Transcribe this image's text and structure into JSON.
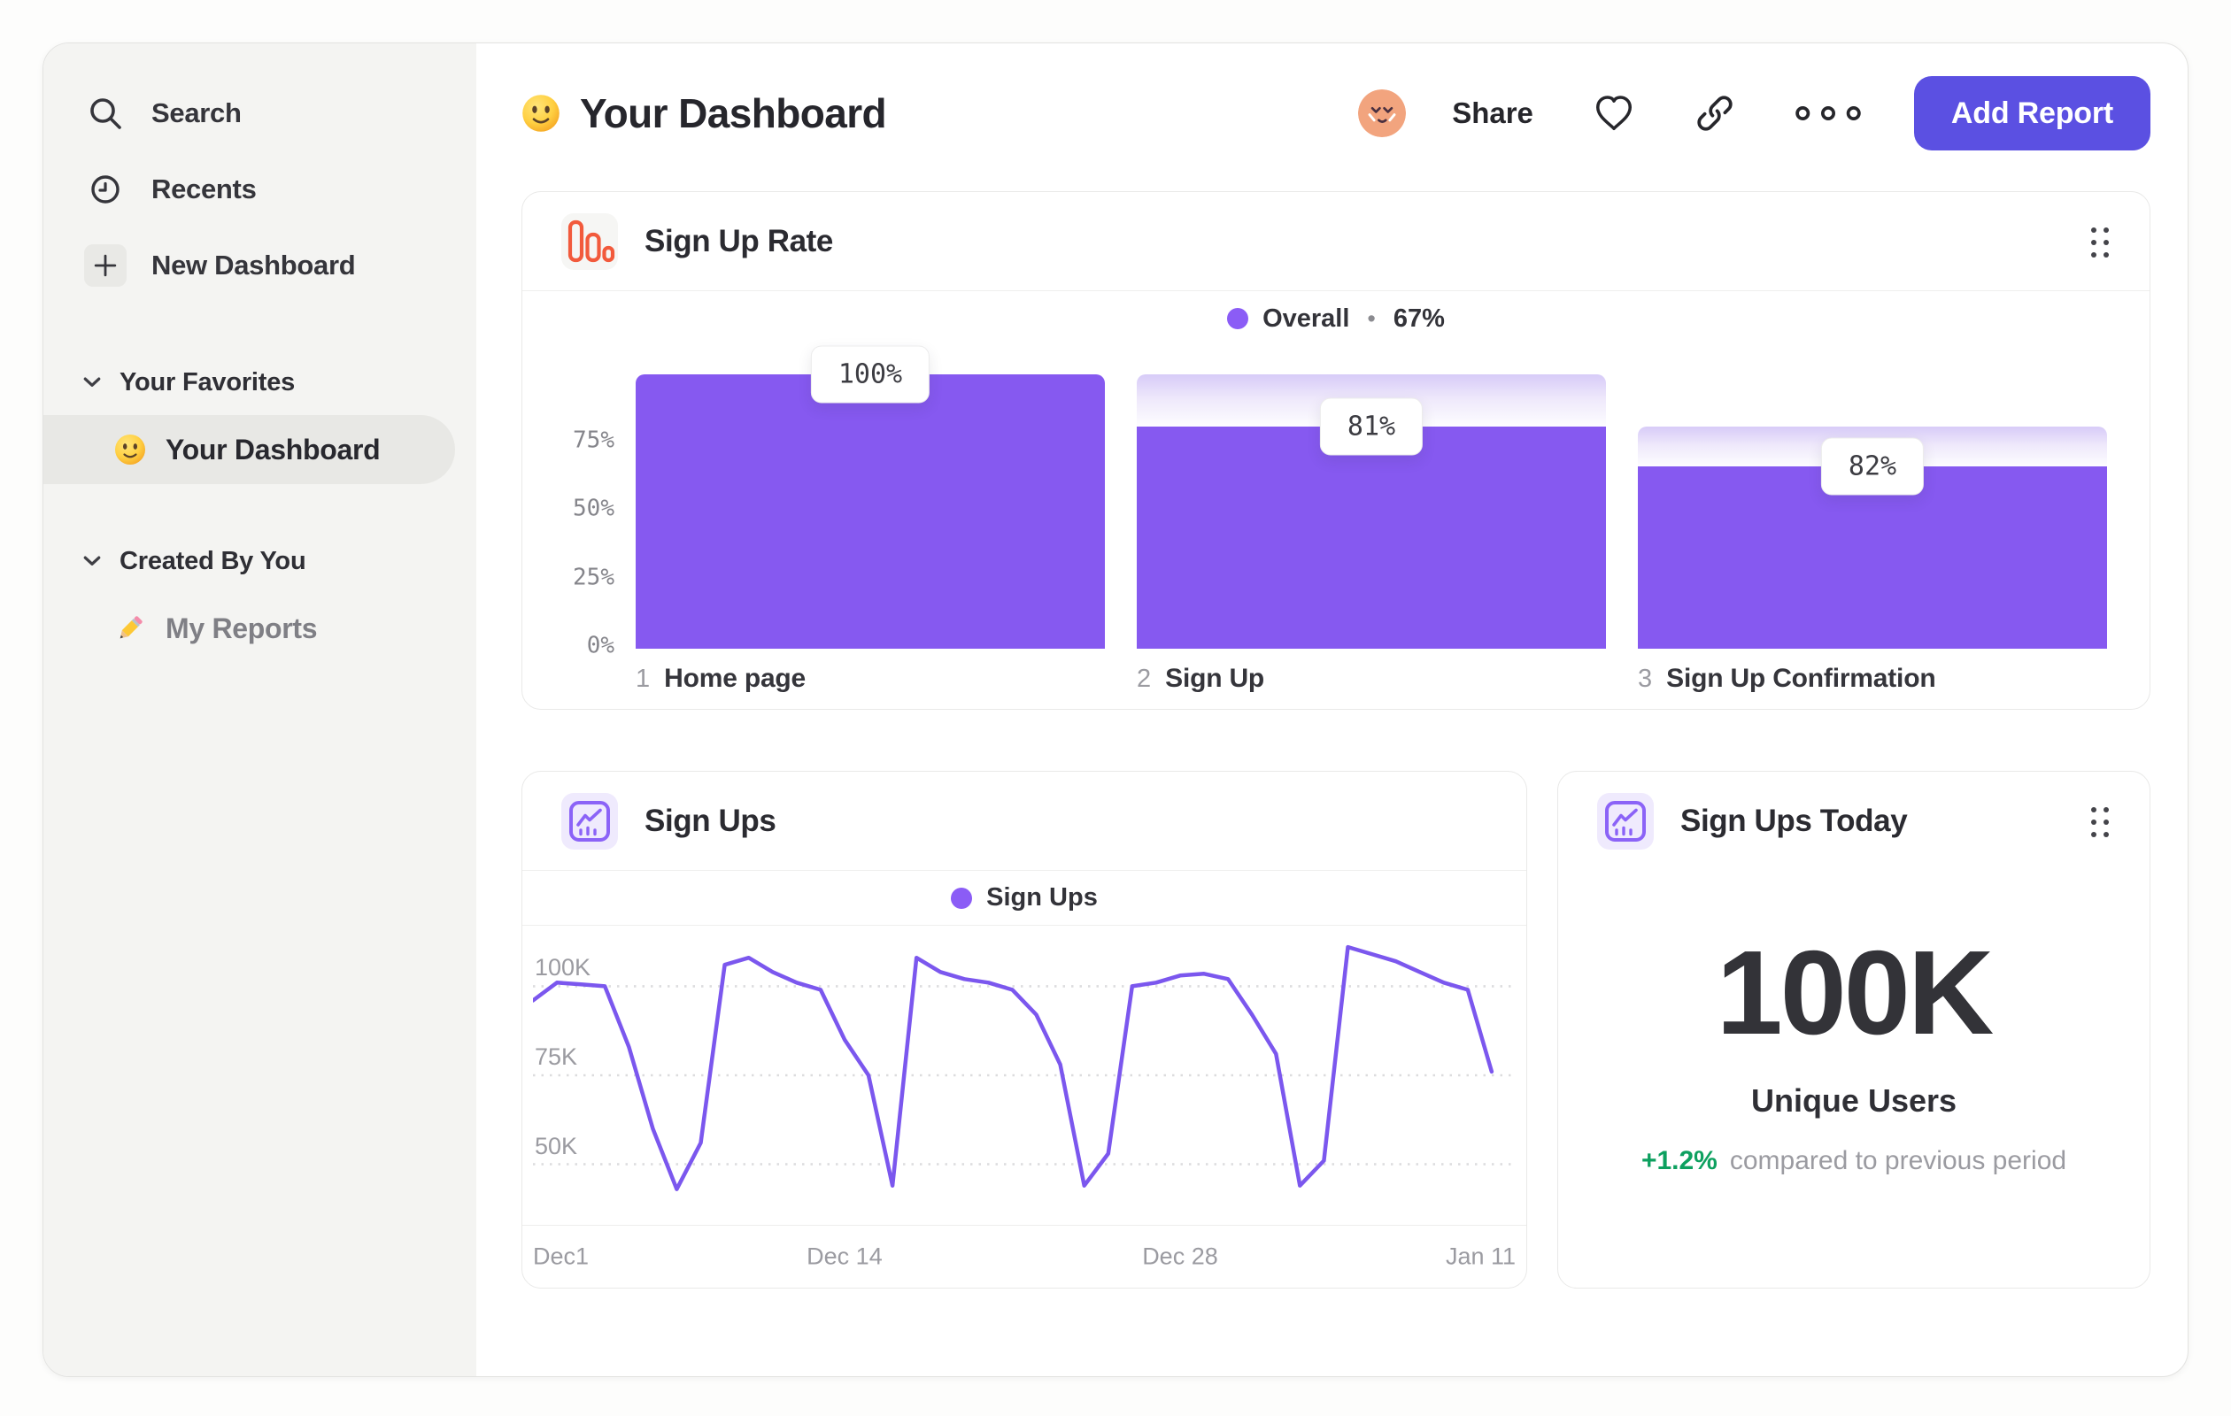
{
  "colors": {
    "accent_button": "#5b50e2",
    "bar_purple": "#8659f0",
    "legend_dot": "#8b5cf6",
    "line_purple": "#7b57ee",
    "icon_orange": "#f25a3c",
    "icon_violet": "#8b63f7",
    "delta_green": "#0da05f",
    "sidebar_bg": "#f4f4f2"
  },
  "sidebar": {
    "nav": [
      {
        "label": "Search",
        "icon": "search-icon"
      },
      {
        "label": "Recents",
        "icon": "clock-icon"
      },
      {
        "label": "New Dashboard",
        "icon": "plus-icon"
      }
    ],
    "sections": [
      {
        "label": "Your Favorites",
        "items": [
          {
            "label": "Your Dashboard",
            "icon": "smiley-emoji",
            "selected": true,
            "muted": false
          }
        ]
      },
      {
        "label": "Created By You",
        "items": [
          {
            "label": "My Reports",
            "icon": "pencil-emoji",
            "selected": false,
            "muted": true
          }
        ]
      }
    ]
  },
  "header": {
    "title": "Your Dashboard",
    "share": "Share",
    "add_report": "Add Report"
  },
  "cards": {
    "funnel": {
      "title": "Sign Up Rate",
      "legend_label": "Overall",
      "legend_sep": "•",
      "legend_value": "67%"
    },
    "line": {
      "title": "Sign Ups",
      "legend_label": "Sign Ups"
    },
    "kpi": {
      "title": "Sign Ups Today",
      "value": "100K",
      "caption": "Unique Users",
      "delta": "+1.2%",
      "delta_text": "compared to previous period",
      "delta_color": "#0da05f"
    }
  },
  "chart_data": [
    {
      "type": "bar",
      "subtype": "funnel",
      "title": "Sign Up Rate",
      "legend": "Overall • 67%",
      "categories": [
        "Home page",
        "Sign Up",
        "Sign Up Confirmation"
      ],
      "step_numbers": [
        "1",
        "2",
        "3"
      ],
      "step_conversion_labels": [
        "100%",
        "81%",
        "82%"
      ],
      "step_conversion_pct": [
        100,
        81,
        82
      ],
      "cumulative_pct": [
        100,
        81,
        66.4
      ],
      "yticks": [
        {
          "label": "75%",
          "value": 75
        },
        {
          "label": "50%",
          "value": 50
        },
        {
          "label": "25%",
          "value": 25
        },
        {
          "label": "0%",
          "value": 0
        }
      ],
      "ylim": [
        0,
        100
      ],
      "grid": false,
      "legend_position": "top-center"
    },
    {
      "type": "line",
      "title": "Sign Ups",
      "legend": "Sign Ups",
      "x_labels": [
        {
          "label": "Dec1",
          "day": 0
        },
        {
          "label": "Dec 14",
          "day": 13
        },
        {
          "label": "Dec 28",
          "day": 27
        },
        {
          "label": "Jan 11",
          "day": 41
        }
      ],
      "x_range_days": 41,
      "yticks": [
        {
          "label": "100K",
          "value": 100
        },
        {
          "label": "75K",
          "value": 75
        },
        {
          "label": "50K",
          "value": 50
        }
      ],
      "ylim_thousands": [
        31,
        115
      ],
      "grid": "dotted-horizontal",
      "legend_position": "top-center",
      "series": [
        {
          "name": "Sign Ups",
          "color": "#7b57ee",
          "days": [
            0,
            1,
            2,
            3,
            4,
            5,
            6,
            7,
            8,
            9,
            10,
            11,
            12,
            13,
            14,
            15,
            16,
            17,
            18,
            19,
            20,
            21,
            22,
            23,
            24,
            25,
            26,
            27,
            28,
            29,
            30,
            31,
            32,
            33,
            34,
            35,
            36,
            37,
            38,
            39,
            40
          ],
          "values_thousands": [
            96,
            101,
            100.5,
            100,
            83,
            60,
            43,
            56,
            106,
            108,
            104,
            101,
            99,
            85,
            75,
            44,
            108,
            104,
            102,
            101,
            99,
            92,
            78,
            44,
            53,
            100,
            101,
            103,
            103.5,
            102,
            92,
            81,
            44,
            51,
            111,
            109,
            107,
            104,
            101,
            99,
            76
          ]
        }
      ]
    },
    {
      "type": "big-number",
      "title": "Sign Ups Today",
      "value": "100K",
      "unit_label": "Unique Users",
      "delta_pct": "+1.2%",
      "comparison": "compared to previous period"
    }
  ]
}
